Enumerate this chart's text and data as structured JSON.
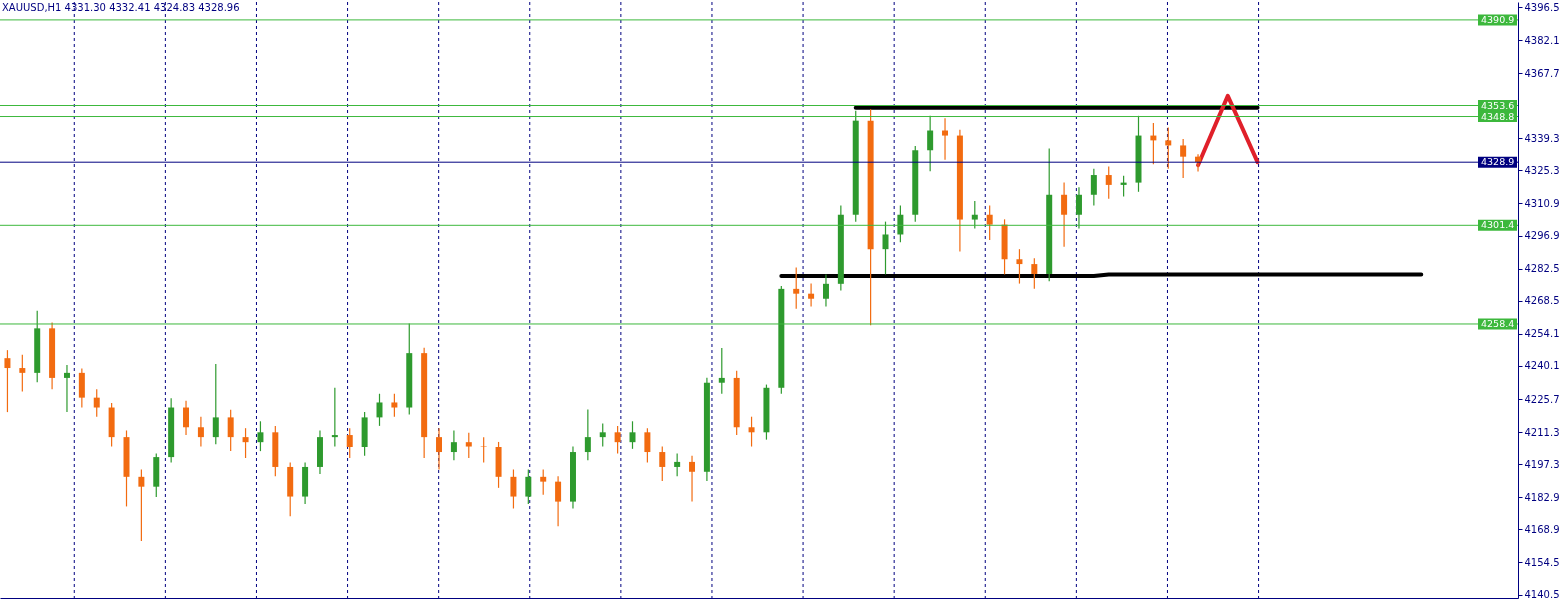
{
  "chart_data": {
    "type": "candlestick",
    "title": "XAUUSD,H1  4331.30 4332.41 4324.83 4328.96",
    "categories": [
      null,
      null,
      null,
      null,
      null,
      null,
      null,
      null,
      null,
      null,
      null,
      null,
      null,
      null,
      null,
      null,
      null,
      null,
      null,
      null,
      null,
      null,
      null,
      null,
      null,
      null,
      null,
      null,
      null,
      null,
      null,
      null,
      null,
      null,
      null,
      null,
      null,
      null,
      null,
      null,
      null,
      null,
      null,
      null,
      null,
      null,
      null,
      null,
      null,
      null,
      null,
      null,
      null,
      null,
      null,
      null,
      null,
      null,
      null,
      null,
      null,
      null,
      null,
      null,
      null,
      null,
      null,
      null,
      null,
      null,
      null,
      null,
      null,
      null,
      null,
      null,
      null,
      null,
      null,
      null,
      null,
      null,
      null,
      null,
      null,
      null,
      null,
      null,
      null,
      null,
      null,
      null,
      null,
      null,
      null,
      null,
      null,
      null,
      null,
      null,
      null,
      null
    ],
    "ohlc": [
      [
        4243.5,
        4247.0,
        4220.0,
        4239.2
      ],
      [
        4239.2,
        4245.0,
        4229.0,
        4237.1
      ],
      [
        4237.1,
        4264.2,
        4233.0,
        4256.5
      ],
      [
        4256.5,
        4259.0,
        4230.0,
        4234.9
      ],
      [
        4234.9,
        4240.5,
        4220.0,
        4237.1
      ],
      [
        4237.1,
        4239.0,
        4222.0,
        4226.3
      ],
      [
        4226.3,
        4230.0,
        4218.0,
        4222.0
      ],
      [
        4222.0,
        4224.0,
        4205.0,
        4209.1
      ],
      [
        4209.1,
        4212.0,
        4178.9,
        4191.8
      ],
      [
        4191.8,
        4195.0,
        4163.8,
        4187.5
      ],
      [
        4187.5,
        4202.0,
        4183.0,
        4200.4
      ],
      [
        4200.4,
        4226.0,
        4198.0,
        4222.0
      ],
      [
        4222.0,
        4225.0,
        4210.0,
        4213.4
      ],
      [
        4213.4,
        4218.0,
        4205.0,
        4209.1
      ],
      [
        4209.1,
        4241.0,
        4206.0,
        4217.7
      ],
      [
        4217.7,
        4221.0,
        4203.0,
        4209.1
      ],
      [
        4209.1,
        4213.0,
        4200.0,
        4206.9
      ],
      [
        4206.9,
        4216.0,
        4203.0,
        4211.2
      ],
      [
        4211.2,
        4214.0,
        4192.0,
        4196.1
      ],
      [
        4196.1,
        4198.0,
        4174.6,
        4183.2
      ],
      [
        4183.2,
        4198.0,
        4180.0,
        4196.1
      ],
      [
        4196.1,
        4212.0,
        4193.0,
        4209.1
      ],
      [
        4209.1,
        4230.6,
        4205.0,
        4210.0
      ],
      [
        4210.0,
        4213.0,
        4200.0,
        4204.8
      ],
      [
        4204.8,
        4220.0,
        4201.0,
        4217.7
      ],
      [
        4217.7,
        4228.0,
        4214.0,
        4224.2
      ],
      [
        4224.2,
        4228.0,
        4218.0,
        4222.0
      ],
      [
        4222.0,
        4258.6,
        4219.0,
        4245.7
      ],
      [
        4245.7,
        4248.0,
        4200.0,
        4209.1
      ],
      [
        4209.1,
        4213.0,
        4195.0,
        4202.6
      ],
      [
        4202.6,
        4212.0,
        4199.0,
        4206.9
      ],
      [
        4206.9,
        4211.0,
        4200.0,
        4205.0
      ],
      [
        4205.0,
        4209.0,
        4198.0,
        4204.8
      ],
      [
        4204.8,
        4207.0,
        4187.0,
        4191.8
      ],
      [
        4191.8,
        4195.0,
        4178.0,
        4183.2
      ],
      [
        4183.2,
        4195.0,
        4180.0,
        4191.8
      ],
      [
        4191.8,
        4195.0,
        4184.0,
        4189.7
      ],
      [
        4189.7,
        4192.0,
        4170.3,
        4181.0
      ],
      [
        4181.0,
        4205.0,
        4178.0,
        4202.6
      ],
      [
        4202.6,
        4221.1,
        4199.0,
        4209.1
      ],
      [
        4209.1,
        4215.0,
        4205.0,
        4211.2
      ],
      [
        4211.2,
        4214.0,
        4202.0,
        4206.9
      ],
      [
        4206.9,
        4216.0,
        4204.0,
        4211.2
      ],
      [
        4211.2,
        4213.0,
        4198.0,
        4202.6
      ],
      [
        4202.6,
        4205.0,
        4190.0,
        4196.1
      ],
      [
        4196.1,
        4202.0,
        4192.0,
        4198.3
      ],
      [
        4198.3,
        4201.0,
        4181.0,
        4194.0
      ],
      [
        4194.0,
        4235.0,
        4190.0,
        4232.8
      ],
      [
        4232.8,
        4247.9,
        4228.0,
        4234.9
      ],
      [
        4234.9,
        4238.0,
        4210.0,
        4213.4
      ],
      [
        4213.4,
        4218.0,
        4205.0,
        4211.2
      ],
      [
        4211.2,
        4232.0,
        4208.0,
        4230.6
      ],
      [
        4230.6,
        4275.0,
        4228.0,
        4273.7
      ],
      [
        4273.7,
        4283.0,
        4265.0,
        4271.6
      ],
      [
        4271.6,
        4276.0,
        4266.0,
        4269.4
      ],
      [
        4269.4,
        4280.0,
        4266.0,
        4275.9
      ],
      [
        4275.9,
        4310.0,
        4273.0,
        4306.0
      ],
      [
        4306.0,
        4351.3,
        4303.0,
        4347.0
      ],
      [
        4347.0,
        4352.0,
        4257.8,
        4291.0
      ],
      [
        4291.0,
        4303.0,
        4280.0,
        4297.4
      ],
      [
        4297.4,
        4310.0,
        4294.0,
        4306.0
      ],
      [
        4306.0,
        4336.0,
        4303.0,
        4334.1
      ],
      [
        4334.1,
        4349.1,
        4325.0,
        4342.7
      ],
      [
        4342.7,
        4348.0,
        4330.0,
        4340.5
      ],
      [
        4340.5,
        4343.0,
        4290.0,
        4303.9
      ],
      [
        4303.9,
        4312.0,
        4300.0,
        4306.0
      ],
      [
        4306.0,
        4310.0,
        4295.0,
        4301.7
      ],
      [
        4301.7,
        4304.0,
        4280.0,
        4286.6
      ],
      [
        4286.6,
        4291.0,
        4276.0,
        4284.5
      ],
      [
        4284.5,
        4287.0,
        4273.7,
        4280.2
      ],
      [
        4280.2,
        4334.9,
        4277.0,
        4314.7
      ],
      [
        4314.7,
        4320.0,
        4292.0,
        4306.0
      ],
      [
        4306.0,
        4318.0,
        4300.0,
        4314.7
      ],
      [
        4314.7,
        4326.0,
        4310.0,
        4323.3
      ],
      [
        4323.3,
        4327.0,
        4313.0,
        4319.0
      ],
      [
        4319.0,
        4323.0,
        4314.0,
        4320.0
      ],
      [
        4320.0,
        4349.1,
        4316.0,
        4340.5
      ],
      [
        4340.5,
        4346.0,
        4328.0,
        4338.4
      ],
      [
        4338.4,
        4344.0,
        4326.0,
        4336.2
      ],
      [
        4336.2,
        4339.0,
        4322.0,
        4331.3
      ],
      [
        4331.3,
        4332.41,
        4324.83,
        4328.96
      ],
      null,
      null,
      null,
      null,
      null,
      null,
      null,
      null,
      null,
      null,
      null,
      null,
      null,
      null,
      null,
      null,
      null,
      null,
      null,
      null,
      null
    ],
    "colors": [
      "#f26b10",
      "#f26b10",
      "#2e9a2e",
      "#f26b10",
      "#2e9a2e",
      "#f26b10",
      "#f26b10",
      "#f26b10",
      "#f26b10",
      "#f26b10",
      "#2e9a2e",
      "#2e9a2e",
      "#f26b10",
      "#f26b10",
      "#2e9a2e",
      "#f26b10",
      "#f26b10",
      "#2e9a2e",
      "#f26b10",
      "#f26b10",
      "#2e9a2e",
      "#2e9a2e",
      "#2e9a2e",
      "#f26b10",
      "#2e9a2e",
      "#2e9a2e",
      "#f26b10",
      "#2e9a2e",
      "#f26b10",
      "#f26b10",
      "#2e9a2e",
      "#f26b10",
      "#f26b10",
      "#f26b10",
      "#f26b10",
      "#2e9a2e",
      "#f26b10",
      "#f26b10",
      "#2e9a2e",
      "#2e9a2e",
      "#2e9a2e",
      "#f26b10",
      "#2e9a2e",
      "#f26b10",
      "#f26b10",
      "#2e9a2e",
      "#f26b10",
      "#2e9a2e",
      "#2e9a2e",
      "#f26b10",
      "#f26b10",
      "#2e9a2e",
      "#2e9a2e",
      "#f26b10",
      "#f26b10",
      "#2e9a2e",
      "#2e9a2e",
      "#2e9a2e",
      "#f26b10",
      "#2e9a2e",
      "#2e9a2e",
      "#2e9a2e",
      "#2e9a2e",
      "#f26b10",
      "#f26b10",
      "#2e9a2e",
      "#f26b10",
      "#f26b10",
      "#f26b10",
      "#f26b10",
      "#2e9a2e",
      "#f26b10",
      "#2e9a2e",
      "#2e9a2e",
      "#f26b10",
      "#2e9a2e",
      "#2e9a2e",
      "#f26b10",
      "#f26b10",
      "#f26b10",
      "#f26b10",
      null,
      null,
      null,
      null,
      null,
      null,
      null,
      null,
      null,
      null,
      null,
      null,
      null,
      null,
      null,
      null,
      null,
      null,
      null,
      null,
      null
    ],
    "series": [
      {
        "type": "line",
        "color": "#000000",
        "values": [
          null,
          null,
          null,
          null,
          null,
          null,
          null,
          null,
          null,
          null,
          null,
          null,
          null,
          null,
          null,
          null,
          null,
          null,
          null,
          null,
          null,
          null,
          null,
          null,
          null,
          null,
          null,
          null,
          null,
          null,
          null,
          null,
          null,
          null,
          null,
          null,
          null,
          null,
          null,
          null,
          null,
          null,
          null,
          null,
          null,
          null,
          null,
          null,
          null,
          null,
          null,
          null,
          null,
          null,
          null,
          null,
          null,
          4352.6,
          4352.6,
          4352.6,
          4352.6,
          4352.6,
          4352.6,
          4352.6,
          4352.6,
          4352.6,
          4352.6,
          4352.6,
          4352.6,
          4352.6,
          4352.6,
          4352.6,
          4352.6,
          4352.6,
          4352.6,
          4352.6,
          4352.6,
          4352.6,
          4352.6,
          4352.6,
          4352.6,
          4352.6,
          4352.6,
          4352.6,
          4352.6,
          null,
          null,
          null,
          null,
          null,
          null,
          null,
          null,
          null,
          null,
          null,
          null,
          null,
          null,
          null,
          null,
          null
        ]
      },
      {
        "type": "line",
        "color": "#000000",
        "values": [
          null,
          null,
          null,
          null,
          null,
          null,
          null,
          null,
          null,
          null,
          null,
          null,
          null,
          null,
          null,
          null,
          null,
          null,
          null,
          null,
          null,
          null,
          null,
          null,
          null,
          null,
          null,
          null,
          null,
          null,
          null,
          null,
          null,
          null,
          null,
          null,
          null,
          null,
          null,
          null,
          null,
          null,
          null,
          null,
          null,
          null,
          null,
          null,
          null,
          null,
          null,
          null,
          4279.3,
          4279.3,
          4279.3,
          4279.3,
          4279.3,
          4279.3,
          4279.3,
          4279.3,
          4279.3,
          4279.3,
          4279.3,
          4279.3,
          4279.3,
          4279.3,
          4279.3,
          4279.3,
          4279.3,
          4279.3,
          4279.3,
          4279.3,
          4279.3,
          4279.3,
          4280.0,
          4280.0,
          4280.0,
          4280.0,
          4280.0,
          4280.0,
          4280.0,
          4280.0,
          4280.0,
          4280.0,
          4280.0,
          4280.0,
          4280.0,
          4280.0,
          4280.0,
          4280.0,
          4280.0,
          4280.0,
          4280.0,
          4280.0,
          4280.0,
          4280.0,
          null,
          null,
          null,
          null,
          null,
          null
        ]
      },
      {
        "type": "line",
        "color": "#e0202a",
        "values": [
          null,
          null,
          null,
          null,
          null,
          null,
          null,
          null,
          null,
          null,
          null,
          null,
          null,
          null,
          null,
          null,
          null,
          null,
          null,
          null,
          null,
          null,
          null,
          null,
          null,
          null,
          null,
          null,
          null,
          null,
          null,
          null,
          null,
          null,
          null,
          null,
          null,
          null,
          null,
          null,
          null,
          null,
          null,
          null,
          null,
          null,
          null,
          null,
          null,
          null,
          null,
          null,
          null,
          null,
          null,
          null,
          null,
          null,
          null,
          null,
          null,
          null,
          null,
          null,
          null,
          null,
          null,
          null,
          null,
          null,
          null,
          null,
          null,
          null,
          null,
          null,
          null,
          null,
          null,
          null,
          4327.6,
          4342.7,
          4357.8,
          4343.4,
          4328.9,
          null,
          null,
          null,
          null,
          null,
          null,
          null,
          null,
          null,
          null,
          null,
          null,
          null,
          null,
          null,
          null,
          null
        ]
      }
    ],
    "ref_lines": [
      {
        "axis": "y",
        "value": 4390.9,
        "label": "4390.9",
        "color": "#3cb83c"
      },
      {
        "axis": "y",
        "value": 4353.6,
        "label": "4353.6",
        "color": "#3cb83c"
      },
      {
        "axis": "y",
        "value": 4348.8,
        "label": "4348.8",
        "color": "#3cb83c"
      },
      {
        "axis": "y",
        "value": 4328.9,
        "label": "4328.9",
        "color": "#000080"
      },
      {
        "axis": "y",
        "value": 4301.4,
        "label": "4301.4",
        "color": "#3cb83c"
      },
      {
        "axis": "y",
        "value": 4258.4,
        "label": "4258.4",
        "color": "#3cb83c"
      }
    ],
    "grid": "x",
    "ylim": [
      4139.0,
      4398.7
    ],
    "yticks": [
      4140.5,
      4154.5,
      4168.9,
      4182.9,
      4197.3,
      4211.3,
      4225.7,
      4240.1,
      4254.1,
      4268.5,
      4282.5,
      4296.9,
      4310.9,
      4325.3,
      4339.3,
      4367.7,
      4382.1,
      4396.5
    ]
  }
}
